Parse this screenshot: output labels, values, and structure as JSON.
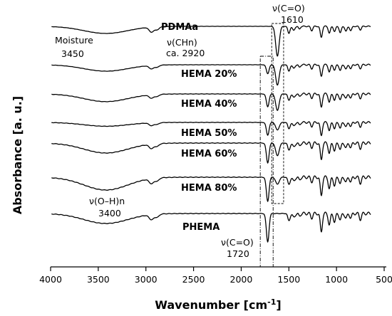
{
  "chart_data": {
    "type": "line",
    "title": "",
    "xlabel": "Wavenumber [cm",
    "xlabel_sup": "-1",
    "xlabel_end": "]",
    "ylabel": "Absorbance [a. u.]",
    "xlim": [
      4000,
      500
    ],
    "x_reversed": true,
    "xticks": [
      4000,
      3500,
      3000,
      2500,
      2000,
      1500,
      1000,
      500
    ],
    "grid": false,
    "legend": "none",
    "series": [
      {
        "name": "PDMAa"
      },
      {
        "name": "HEMA 20%"
      },
      {
        "name": "HEMA 40%"
      },
      {
        "name": "HEMA 50%"
      },
      {
        "name": "HEMA 60%"
      },
      {
        "name": "HEMA 80%"
      },
      {
        "name": "PHEMA"
      }
    ],
    "annotations": [
      {
        "line1": "ν(C=O)",
        "line2": "1610"
      },
      {
        "line1": "Moisture",
        "line2": "3450"
      },
      {
        "line1": "ν(CHn)",
        "line2": "ca. 2920"
      },
      {
        "line1": "ν(O–H)n",
        "line2": "3400"
      },
      {
        "line1": "ν(C=O)",
        "line2": "1720"
      }
    ]
  }
}
